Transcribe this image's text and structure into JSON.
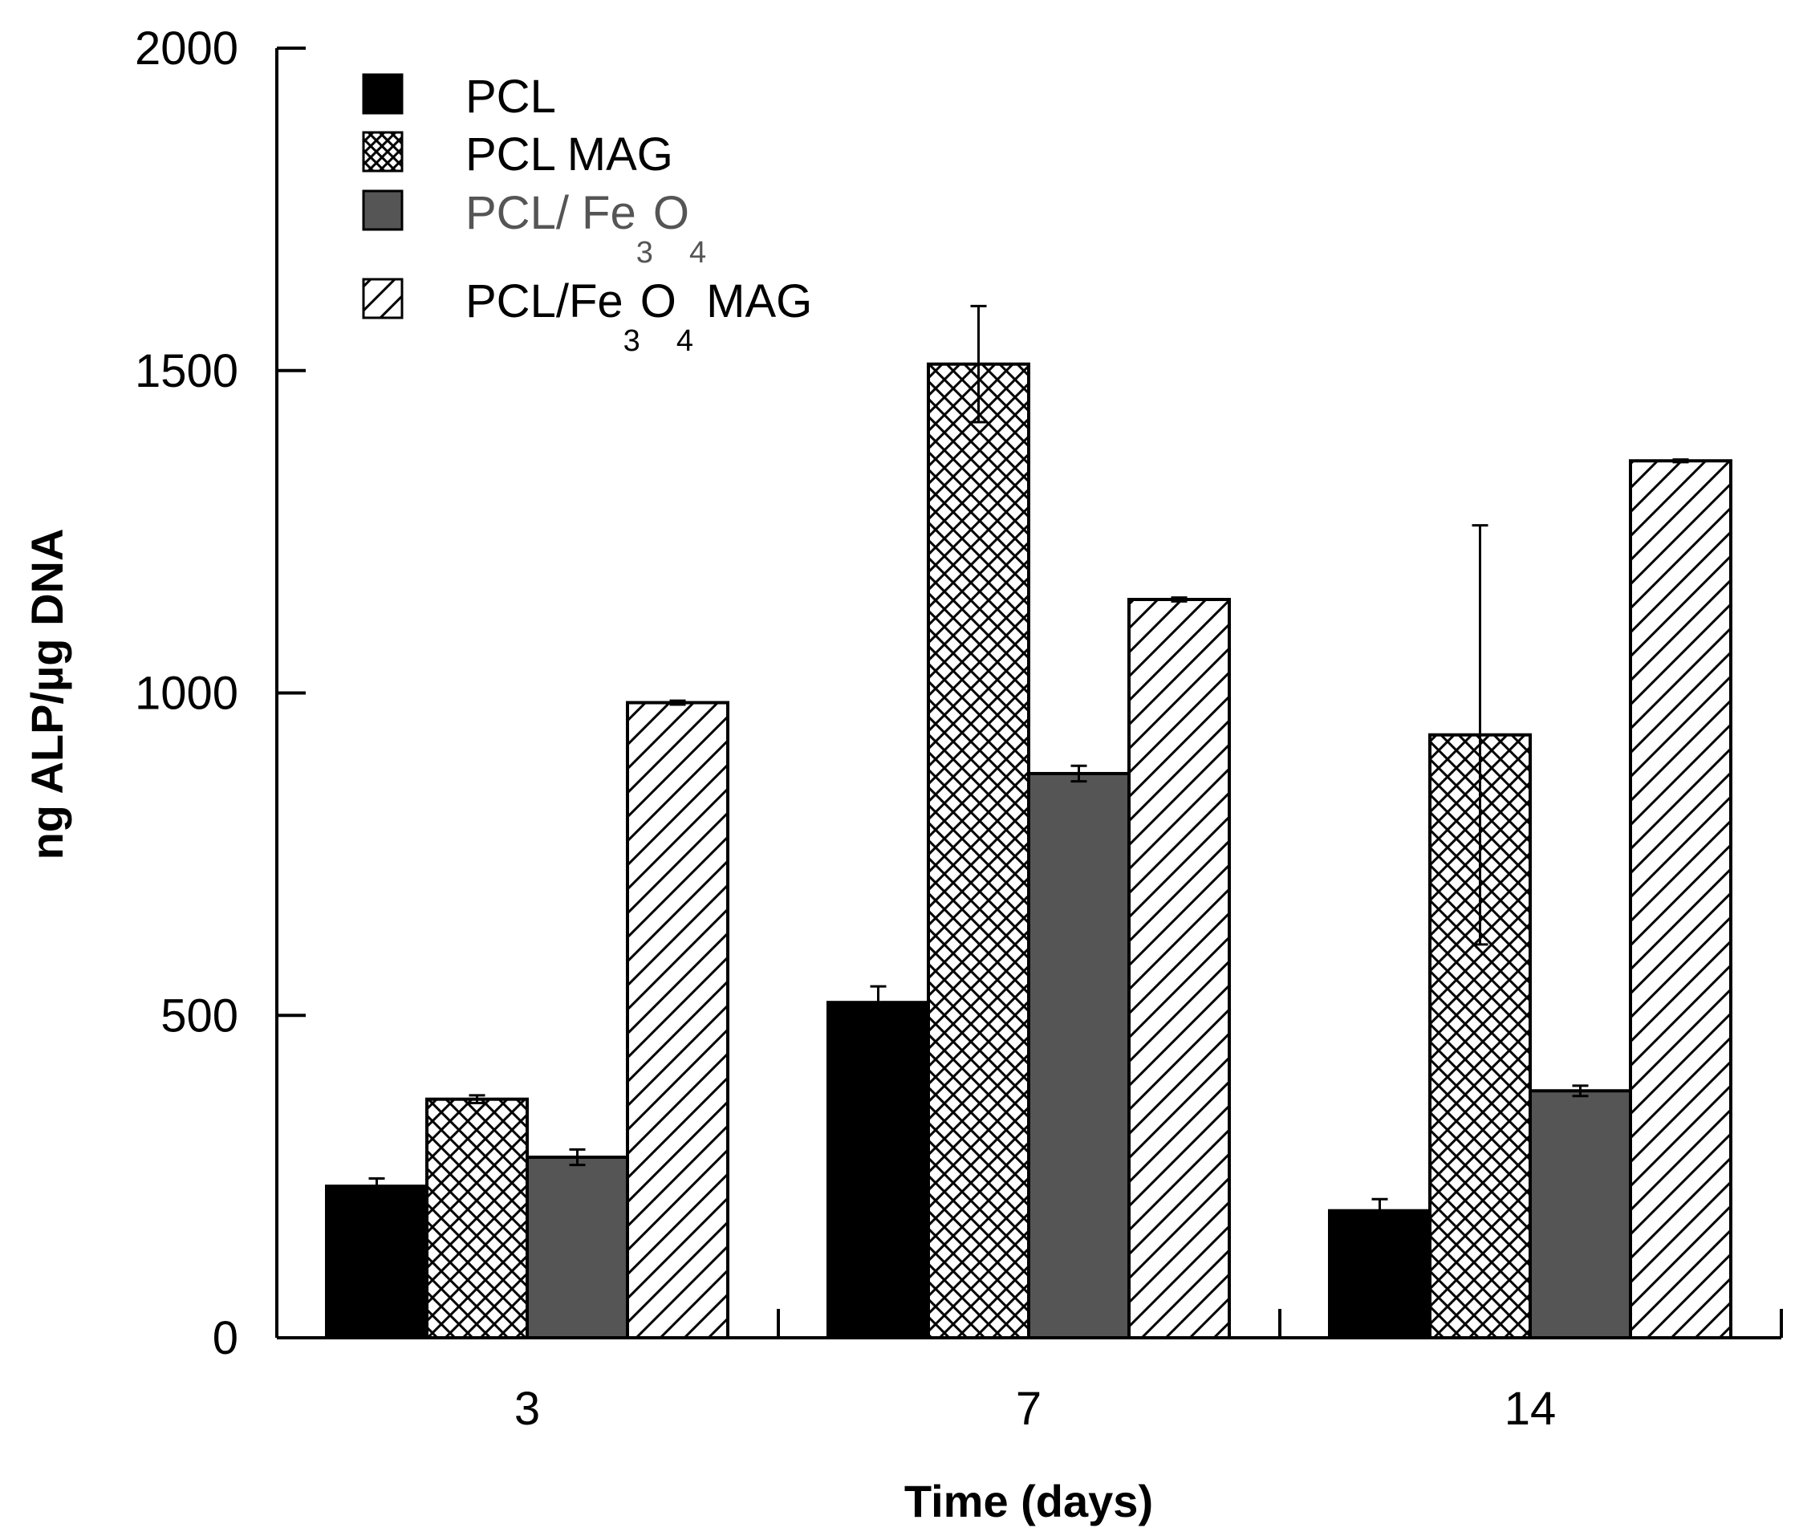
{
  "chart_data": {
    "type": "bar",
    "title": "",
    "xlabel": "Time (days)",
    "ylabel": "ng ALP/µg DNA",
    "ylim": [
      0,
      2000
    ],
    "yticks": [
      0,
      500,
      1000,
      1500,
      2000
    ],
    "categories": [
      "3",
      "7",
      "14"
    ],
    "legend_position": "top-left",
    "series": [
      {
        "name": "PCL",
        "fill": "solid-black",
        "color": "#000000",
        "values": [
          235,
          520,
          197
        ],
        "errors": [
          12,
          25,
          18
        ]
      },
      {
        "name": "PCL MAG",
        "fill": "crosshatch",
        "color": "#000000",
        "values": [
          370,
          1510,
          935
        ],
        "errors": [
          6,
          90,
          325
        ]
      },
      {
        "name": "PCL/ Fe3O4",
        "fill": "solid-gray",
        "color": "#555555",
        "values": [
          280,
          875,
          383
        ],
        "errors": [
          12,
          12,
          8
        ]
      },
      {
        "name": "PCL/Fe3O4 MAG",
        "fill": "diagonal-hatch",
        "color": "#000000",
        "values": [
          985,
          1145,
          1360
        ],
        "errors": [
          3,
          3,
          2
        ]
      }
    ],
    "legend": [
      {
        "main": "PCL",
        "parts": [
          "PCL"
        ]
      },
      {
        "main": "PCL MAG",
        "parts": [
          "PCL MAG"
        ]
      },
      {
        "main": "PCL/ Fe3O4",
        "parts": [
          "PCL/ Fe",
          "3",
          "O",
          "4"
        ]
      },
      {
        "main": "PCL/Fe3O4 MAG",
        "parts": [
          "PCL/Fe",
          "3",
          "O",
          "4",
          " MAG"
        ]
      }
    ]
  }
}
